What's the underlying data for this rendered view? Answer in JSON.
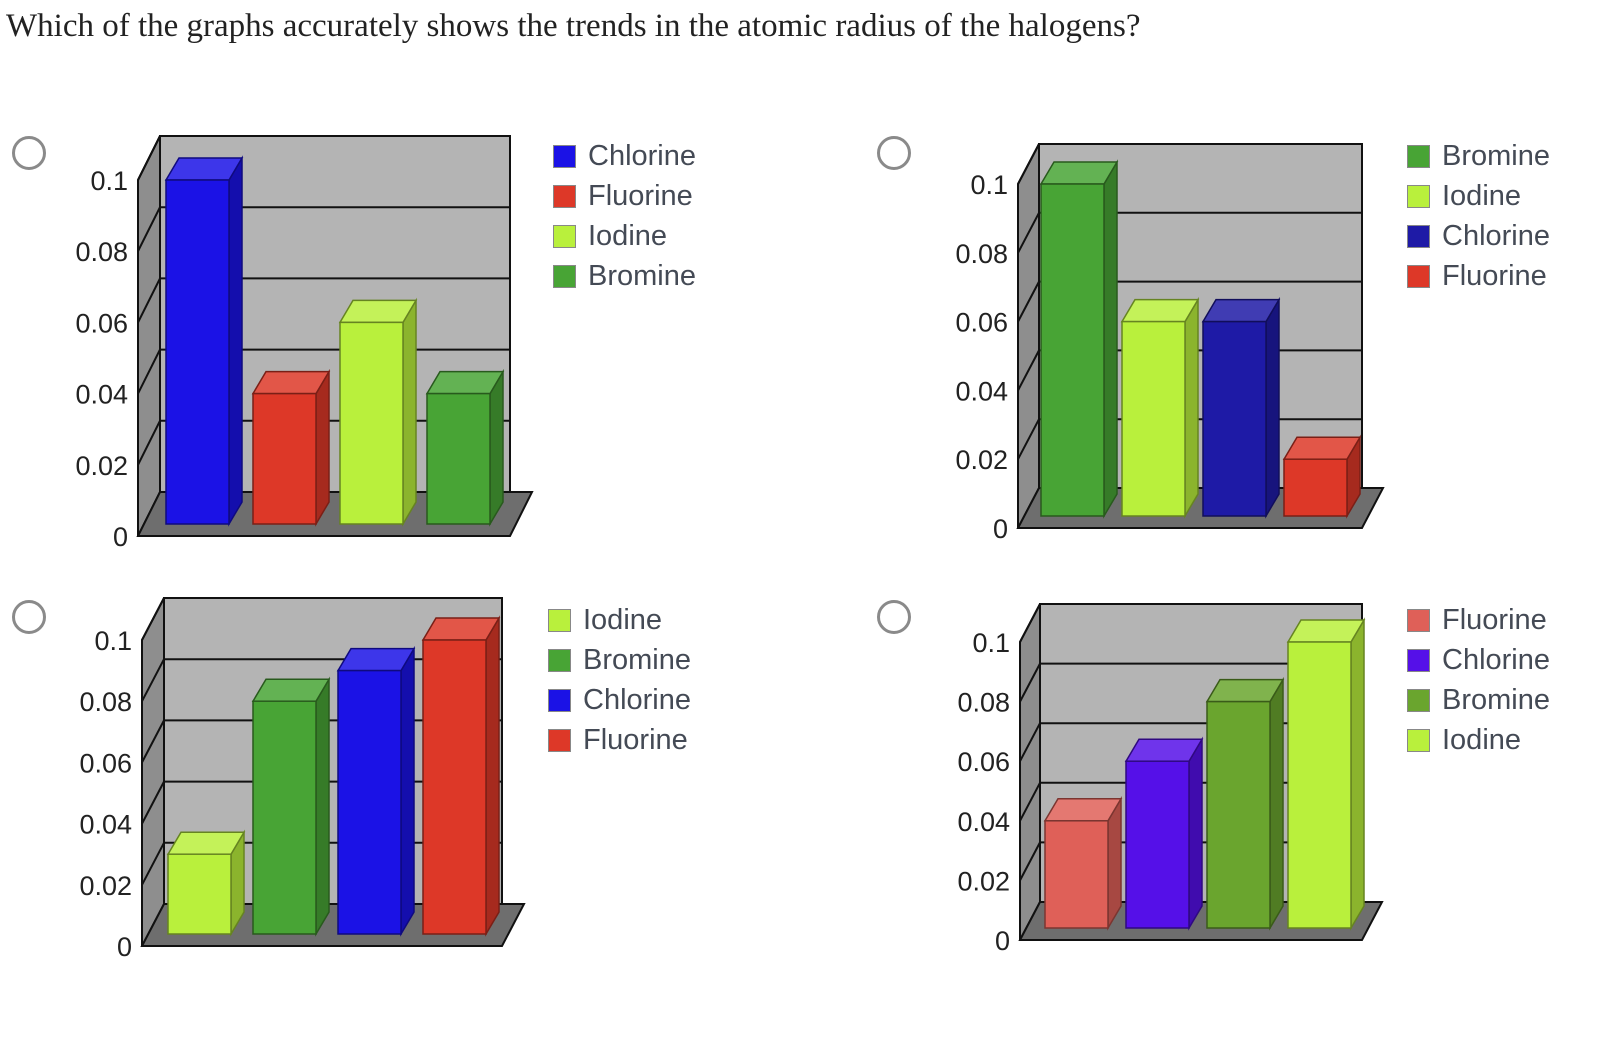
{
  "question": "Which of the graphs accurately shows the trends in the atomic radius of the halogens?",
  "colors": {
    "Chlorine_a": "#1b12e6",
    "Fluorine_a": "#dd3828",
    "Iodine": "#b9f03c",
    "Bromine": "#48a435",
    "Chlorine_b": "#1e1aa6",
    "Chlorine_c": "#5510e8",
    "Fluorine_d": "#df6058",
    "Bromine_d": "#6aa52e"
  },
  "chart_data": [
    {
      "type": "bar",
      "option_index": 1,
      "categories": [
        "Chlorine",
        "Fluorine",
        "Iodine",
        "Bromine"
      ],
      "values": [
        0.1,
        0.04,
        0.06,
        0.04
      ],
      "bar_colors": [
        "#1b12e6",
        "#dd3828",
        "#b9f03c",
        "#48a435"
      ],
      "legend": [
        "Chlorine",
        "Fluorine",
        "Iodine",
        "Bromine"
      ],
      "y_ticks": [
        "0",
        "0.02",
        "0.04",
        "0.06",
        "0.08",
        "0.1"
      ],
      "ylim": [
        0,
        0.1
      ],
      "xlabel": "",
      "ylabel": "",
      "title": ""
    },
    {
      "type": "bar",
      "option_index": 2,
      "categories": [
        "Bromine",
        "Iodine",
        "Chlorine",
        "Fluorine"
      ],
      "values": [
        0.1,
        0.06,
        0.06,
        0.02
      ],
      "bar_colors": [
        "#48a435",
        "#b9f03c",
        "#1e1aa6",
        "#dd3828"
      ],
      "legend": [
        "Bromine",
        "Iodine",
        "Chlorine",
        "Fluorine"
      ],
      "y_ticks": [
        "0",
        "0.02",
        "0.04",
        "0.06",
        "0.08",
        "0.1"
      ],
      "ylim": [
        0,
        0.1
      ],
      "xlabel": "",
      "ylabel": "",
      "title": ""
    },
    {
      "type": "bar",
      "option_index": 3,
      "categories": [
        "Iodine",
        "Bromine",
        "Chlorine",
        "Fluorine"
      ],
      "values": [
        0.03,
        0.08,
        0.09,
        0.1
      ],
      "bar_colors": [
        "#b9f03c",
        "#48a435",
        "#1b12e6",
        "#dd3828"
      ],
      "legend": [
        "Iodine",
        "Bromine",
        "Chlorine",
        "Fluorine"
      ],
      "y_ticks": [
        "0",
        "0.02",
        "0.04",
        "0.06",
        "0.08",
        "0.1"
      ],
      "ylim": [
        0,
        0.1
      ],
      "xlabel": "",
      "ylabel": "",
      "title": ""
    },
    {
      "type": "bar",
      "option_index": 4,
      "categories": [
        "Fluorine",
        "Chlorine",
        "Bromine",
        "Iodine"
      ],
      "values": [
        0.04,
        0.06,
        0.08,
        0.1
      ],
      "bar_colors": [
        "#df6058",
        "#5510e8",
        "#6aa52e",
        "#b9f03c"
      ],
      "legend": [
        "Fluorine",
        "Chlorine",
        "Bromine",
        "Iodine"
      ],
      "y_ticks": [
        "0",
        "0.02",
        "0.04",
        "0.06",
        "0.08",
        "0.1"
      ],
      "ylim": [
        0,
        0.1
      ],
      "xlabel": "",
      "ylabel": "",
      "title": ""
    }
  ]
}
